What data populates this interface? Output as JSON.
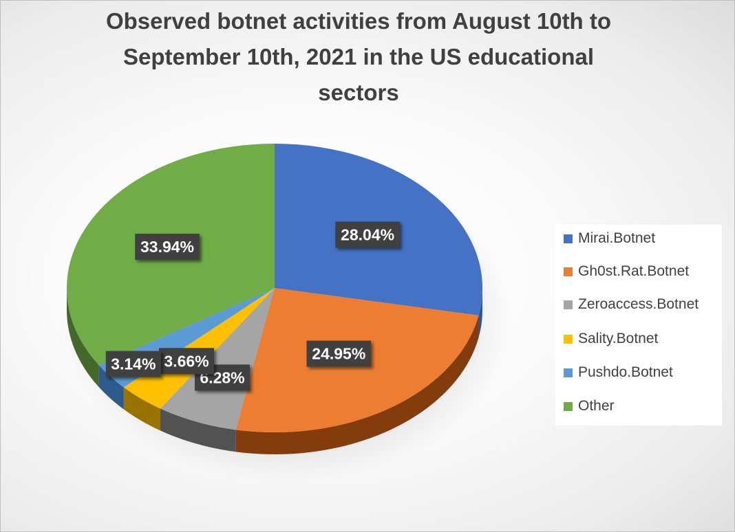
{
  "chart_data": {
    "type": "pie",
    "title_lines": [
      "Observed botnet activities from August 10th to",
      "September 10th, 2021 in the US educational",
      "sectors"
    ],
    "slices": [
      {
        "name": "Mirai.Botnet",
        "value": 28.04,
        "label": "28.04%",
        "color": "#4472C4",
        "side_color": "#2F5597"
      },
      {
        "name": "Gh0st.Rat.Botnet",
        "value": 24.95,
        "label": "24.95%",
        "color": "#ED7D31",
        "side_color": "#843C0C"
      },
      {
        "name": "Zeroaccess.Botnet",
        "value": 6.28,
        "label": "6.28%",
        "color": "#A5A5A5",
        "side_color": "#525252"
      },
      {
        "name": "Sality.Botnet",
        "value": 3.66,
        "label": "3.66%",
        "color": "#FFC000",
        "side_color": "#997300"
      },
      {
        "name": "Pushdo.Botnet",
        "value": 3.14,
        "label": "3.14%",
        "color": "#5B9BD5",
        "side_color": "#2E5C8A"
      },
      {
        "name": "Other",
        "value": 33.94,
        "label": "33.94%",
        "color": "#70AD47",
        "side_color": "#43682A"
      }
    ],
    "legend_position": "right",
    "style": "3d-pie"
  }
}
